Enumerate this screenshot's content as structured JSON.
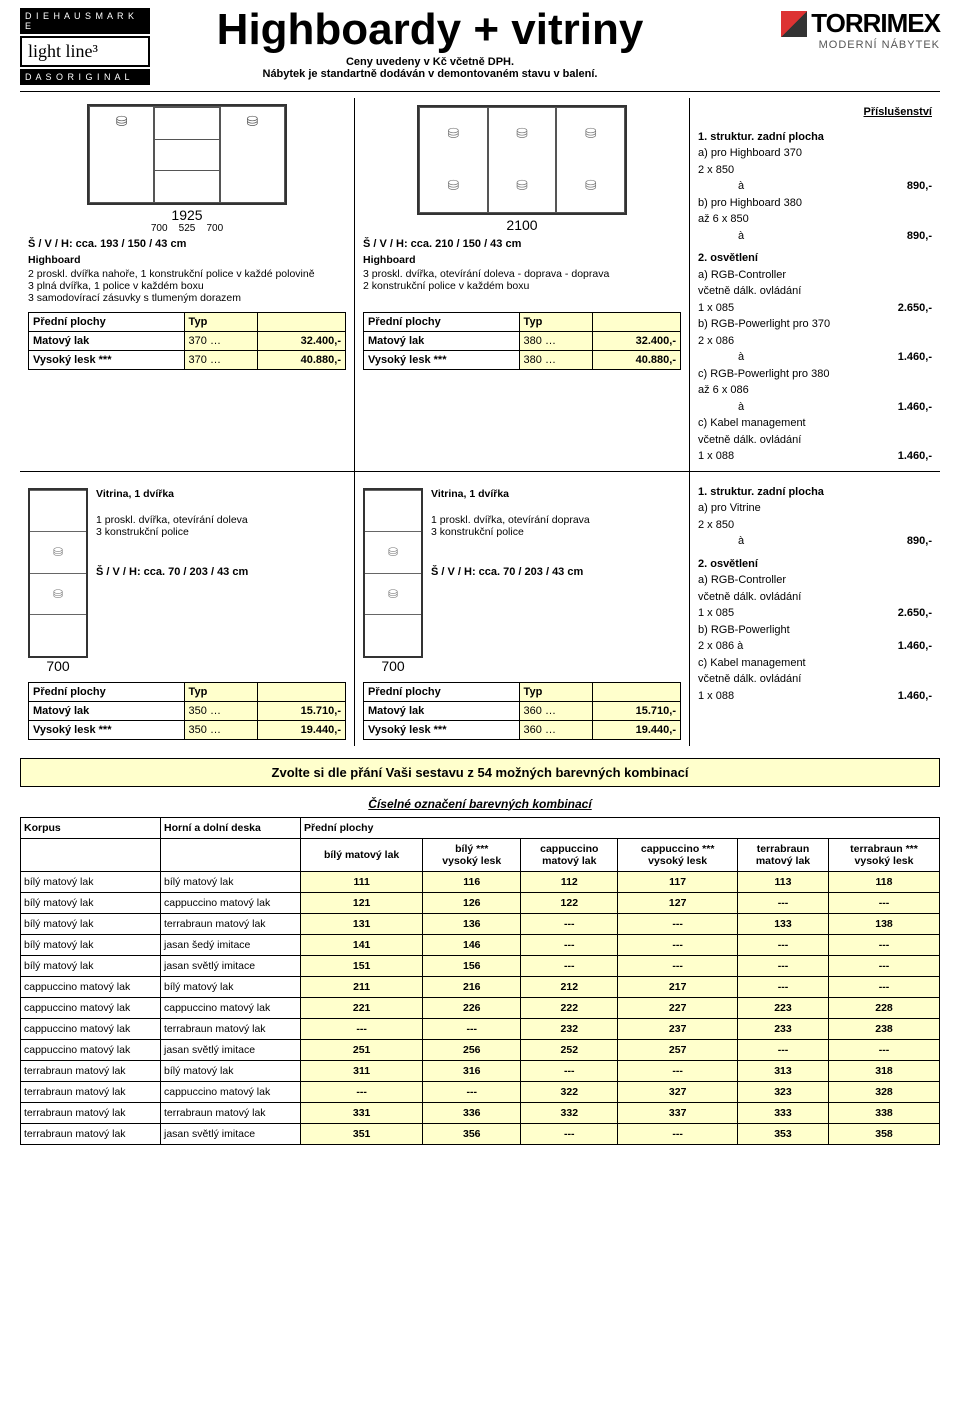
{
  "header": {
    "brand_top": "D I E   H A U S M A R K E",
    "brand_logo": "light line³",
    "brand_bottom": "D A S   O R I G I N A L",
    "title": "Highboardy + vitriny",
    "subtitle1": "Ceny uvedeny v Kč včetně DPH.",
    "subtitle2": "Nábytek je standartně dodáván v demontovaném stavu v balení.",
    "torrimex": "TORRIMEX",
    "torrimex_sub": "MODERNÍ NÁBYTEK"
  },
  "acc_title": "Příslušenství",
  "p1": {
    "dim_parts": [
      "700",
      "525",
      "700"
    ],
    "dim_total": "1925",
    "svh": "Š / V / H: cca.  193 / 150 / 43 cm",
    "name": "Highboard",
    "lines": [
      "2 proskl. dvířka nahoře, 1 konstrukční police v každé polovině",
      "3 plná dvířka, 1 police v každém boxu",
      "3 samodovírací zásuvky s tlumeným dorazem"
    ],
    "th1": "Přední plochy",
    "th2": "Typ",
    "r1l": "Matový lak",
    "r1t": "370 …",
    "r1p": "32.400,-",
    "r2l": "Vysoký lesk ***",
    "r2t": "370 …",
    "r2p": "40.880,-"
  },
  "p2": {
    "dim_total": "2100",
    "svh": "Š / V / H: cca.  210 / 150 / 43 cm",
    "name": "Highboard",
    "lines": [
      "3 proskl. dvířka, otevírání doleva - doprava - doprava",
      "2 konstrukční police v každém boxu"
    ],
    "th1": "Přední plochy",
    "th2": "Typ",
    "r1l": "Matový lak",
    "r1t": "380 …",
    "r1p": "32.400,-",
    "r2l": "Vysoký lesk ***",
    "r2t": "380 …",
    "r2p": "40.880,-"
  },
  "acc1": {
    "h1": "1. struktur. zadní plocha",
    "a": "a) pro Highboard 370",
    "a2": "2 x 850",
    "ap": "890,-",
    "b": "b) pro Highboard 380",
    "b2": "až 6 x 850",
    "bp": "890,-",
    "h2": "2. osvětlení",
    "c": "a) RGB-Controller",
    "c2": "včetně dálk. ovládání",
    "c3": "1 x 085",
    "cp": "2.650,-",
    "d": "b) RGB-Powerlight pro 370",
    "d2": "2 x 086",
    "dp": "1.460,-",
    "e": "c) RGB-Powerlight pro 380",
    "e2": "až 6 x 086",
    "ep": "1.460,-",
    "f": "c) Kabel management",
    "f2": "včetně dálk. ovládání",
    "f3": "1 x 088",
    "fp": "1.460,-"
  },
  "p3": {
    "name": "Vitrina, 1 dvířka",
    "lines": [
      "1 proskl. dvířka, otevírání doleva",
      "3 konstrukční police"
    ],
    "svh": "Š / V / H: cca.  70 / 203 / 43 cm",
    "dim": "700",
    "th1": "Přední plochy",
    "th2": "Typ",
    "r1l": "Matový lak",
    "r1t": "350 …",
    "r1p": "15.710,-",
    "r2l": "Vysoký lesk ***",
    "r2t": "350 …",
    "r2p": "19.440,-"
  },
  "p4": {
    "name": "Vitrina, 1 dvířka",
    "lines": [
      "1 proskl. dvířka, otevírání doprava",
      "3 konstrukční police"
    ],
    "svh": "Š / V / H: cca.  70 / 203 / 43 cm",
    "dim": "700",
    "th1": "Přední plochy",
    "th2": "Typ",
    "r1l": "Matový lak",
    "r1t": "360 …",
    "r1p": "15.710,-",
    "r2l": "Vysoký lesk ***",
    "r2t": "360 …",
    "r2p": "19.440,-"
  },
  "acc2": {
    "h1": "1. struktur. zadní plocha",
    "a": "a) pro Vitrine",
    "a2": "2 x 850",
    "ap": "890,-",
    "h2": "2. osvětlení",
    "b": "a) RGB-Controller",
    "b2": "včetně dálk. ovládání",
    "b3": "1 x 085",
    "bp": "2.650,-",
    "c": "b) RGB-Powerlight",
    "c2": "2 x 086   à",
    "cp": "1.460,-",
    "d": "c) Kabel management",
    "d2": "včetně dálk. ovládání",
    "d3": "1 x 088",
    "dp": "1.460,-"
  },
  "combo": {
    "head": "Zvolte si dle přání Vaši sestavu z 54 možných barevných kombinací",
    "sub": "Číselné označení barevných kombinací",
    "korpus": "Korpus",
    "horni": "Horní a dolní deska",
    "predni": "Přední plochy",
    "cols": [
      "bílý matový lak",
      "bílý ***\nvysoký lesk",
      "cappuccino\nmatový lak",
      "cappuccino ***\nvysoký lesk",
      "terrabraun\nmatový lak",
      "terrabraun ***\nvysoký lesk"
    ],
    "rows": [
      [
        "bílý matový lak",
        "bílý matový lak",
        "111",
        "116",
        "112",
        "117",
        "113",
        "118"
      ],
      [
        "bílý matový lak",
        "cappuccino matový lak",
        "121",
        "126",
        "122",
        "127",
        "---",
        "---"
      ],
      [
        "bílý matový lak",
        "terrabraun matový lak",
        "131",
        "136",
        "---",
        "---",
        "133",
        "138"
      ],
      [
        "bílý matový lak",
        "jasan šedý imitace",
        "141",
        "146",
        "---",
        "---",
        "---",
        "---"
      ],
      [
        "bílý matový lak",
        "jasan světlý imitace",
        "151",
        "156",
        "---",
        "---",
        "---",
        "---"
      ],
      [
        "cappuccino matový lak",
        "bílý matový lak",
        "211",
        "216",
        "212",
        "217",
        "---",
        "---"
      ],
      [
        "cappuccino matový lak",
        "cappuccino matový lak",
        "221",
        "226",
        "222",
        "227",
        "223",
        "228"
      ],
      [
        "cappuccino matový lak",
        "terrabraun matový lak",
        "---",
        "---",
        "232",
        "237",
        "233",
        "238"
      ],
      [
        "cappuccino matový lak",
        "jasan světlý imitace",
        "251",
        "256",
        "252",
        "257",
        "---",
        "---"
      ],
      [
        "terrabraun matový lak",
        "bílý matový lak",
        "311",
        "316",
        "---",
        "---",
        "313",
        "318"
      ],
      [
        "terrabraun matový lak",
        "cappuccino matový lak",
        "---",
        "---",
        "322",
        "327",
        "323",
        "328"
      ],
      [
        "terrabraun matový lak",
        "terrabraun matový lak",
        "331",
        "336",
        "332",
        "337",
        "333",
        "338"
      ],
      [
        "terrabraun matový lak",
        "jasan světlý imitace",
        "351",
        "356",
        "---",
        "---",
        "353",
        "358"
      ]
    ]
  },
  "a_label": "à"
}
